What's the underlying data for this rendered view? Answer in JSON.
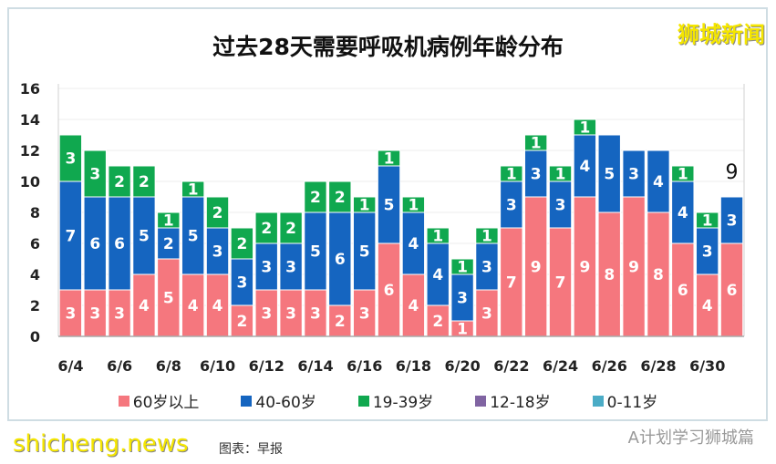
{
  "chart_data": {
    "type": "bar",
    "stacked": true,
    "title": "过去28天需要呼吸机病例年龄分布",
    "categories": [
      "6/4",
      "6/5",
      "6/6",
      "6/7",
      "6/8",
      "6/9",
      "6/10",
      "6/11",
      "6/12",
      "6/13",
      "6/14",
      "6/15",
      "6/16",
      "6/17",
      "6/18",
      "6/19",
      "6/20",
      "6/21",
      "6/22",
      "6/23",
      "6/24",
      "6/25",
      "6/26",
      "6/27",
      "6/28",
      "6/29",
      "6/30",
      "7/1"
    ],
    "x_tick_labels": [
      "6/4",
      "6/6",
      "6/8",
      "6/10",
      "6/12",
      "6/14",
      "6/16",
      "6/18",
      "6/20",
      "6/22",
      "6/24",
      "6/26",
      "6/28",
      "6/30"
    ],
    "y_ticks": [
      0,
      2,
      4,
      6,
      8,
      10,
      12,
      14,
      16
    ],
    "ylim": [
      0,
      16
    ],
    "grid": true,
    "legend_position": "bottom",
    "series": [
      {
        "name": "60岁以上",
        "color": "#f5777e",
        "values": [
          3,
          3,
          3,
          4,
          5,
          4,
          4,
          2,
          3,
          3,
          3,
          2,
          3,
          6,
          4,
          2,
          1,
          3,
          7,
          9,
          7,
          9,
          8,
          9,
          8,
          6,
          4,
          6
        ]
      },
      {
        "name": "40-60岁",
        "color": "#1565c0",
        "values": [
          7,
          6,
          6,
          5,
          2,
          5,
          3,
          3,
          3,
          3,
          5,
          6,
          5,
          5,
          4,
          4,
          3,
          3,
          3,
          3,
          3,
          4,
          5,
          3,
          4,
          4,
          3,
          3
        ]
      },
      {
        "name": "19-39岁",
        "color": "#10a84f",
        "values": [
          3,
          3,
          2,
          2,
          1,
          1,
          2,
          2,
          2,
          2,
          2,
          2,
          1,
          1,
          1,
          1,
          1,
          1,
          1,
          1,
          1,
          1,
          0,
          0,
          0,
          1,
          1,
          0
        ]
      },
      {
        "name": "12-18岁",
        "color": "#8064a2",
        "values": [
          0,
          0,
          0,
          0,
          0,
          0,
          0,
          0,
          0,
          0,
          0,
          0,
          0,
          0,
          0,
          0,
          0,
          0,
          0,
          0,
          0,
          0,
          0,
          0,
          0,
          0,
          0,
          0
        ]
      },
      {
        "name": "0-11岁",
        "color": "#4bacc6",
        "values": [
          0,
          0,
          0,
          0,
          0,
          0,
          0,
          0,
          0,
          0,
          0,
          0,
          0,
          0,
          0,
          0,
          0,
          0,
          0,
          0,
          0,
          0,
          0,
          0,
          0,
          0,
          0,
          0
        ]
      }
    ],
    "annotations": [
      {
        "category": "7/1",
        "text": "9"
      }
    ]
  },
  "watermarks": {
    "top_right": "狮城新闻",
    "bottom_left": "shicheng.news",
    "bottom_right": "A计划学习狮城篇"
  },
  "source": "图表：早报"
}
